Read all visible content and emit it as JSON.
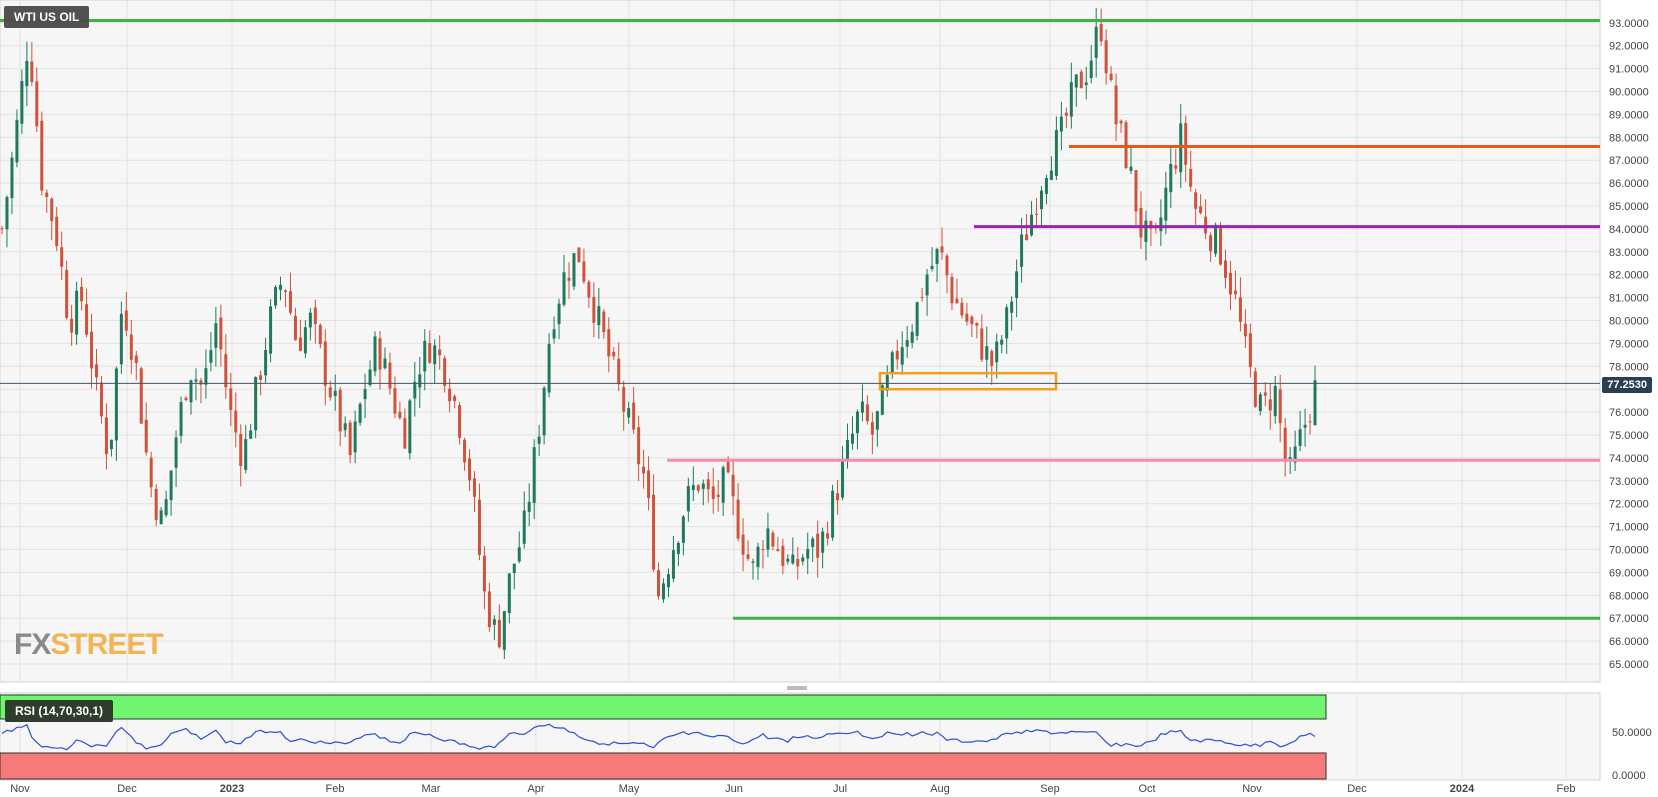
{
  "header": {
    "instrument": "WTI US OIL"
  },
  "price_tag": "77.2530",
  "watermark": {
    "part1": "FX",
    "part2": "STREET"
  },
  "rsi": {
    "label": "RSI (14,70,30,1)",
    "levels": [
      "50.0000",
      "0.0000"
    ]
  },
  "colors": {
    "bull": "#1f7a5c",
    "bear": "#d0523b",
    "green_line": "#43b046",
    "orange_line": "#e8581a",
    "purple_line": "#9b24ac",
    "pink_line": "#f48caf",
    "box": "#f0a020",
    "rsi_line": "#2a4fd6",
    "rsi_overbought": "#6ff56f",
    "rsi_oversold": "#f77a7a"
  },
  "chart_data": {
    "type": "candlestick",
    "title": "WTI US OIL",
    "y_range": [
      64.5,
      93.9
    ],
    "y_ticks": [
      "65.0000",
      "66.0000",
      "67.0000",
      "68.0000",
      "69.0000",
      "70.0000",
      "71.0000",
      "72.0000",
      "73.0000",
      "74.0000",
      "75.0000",
      "76.0000",
      "77.0000",
      "78.0000",
      "79.0000",
      "80.0000",
      "81.0000",
      "82.0000",
      "83.0000",
      "84.0000",
      "85.0000",
      "86.0000",
      "87.0000",
      "88.0000",
      "89.0000",
      "90.0000",
      "91.0000",
      "92.0000",
      "93.0000"
    ],
    "x_ticks": [
      "Nov",
      "Dec",
      "2023",
      "Feb",
      "Mar",
      "Apr",
      "May",
      "Jun",
      "Jul",
      "Aug",
      "Sep",
      "Oct",
      "Nov",
      "Dec",
      "2024",
      "Feb"
    ],
    "last_price": 77.253,
    "horizontal_levels": [
      {
        "price": 93.1,
        "color": "green"
      },
      {
        "price": 87.6,
        "color": "orange"
      },
      {
        "price": 84.1,
        "color": "purple"
      },
      {
        "price": 73.9,
        "color": "pink"
      },
      {
        "price": 67.0,
        "color": "green"
      }
    ],
    "box_zone": {
      "low": 77.1,
      "high": 77.5,
      "from": "Jul",
      "to": "Sep"
    },
    "price_path": [
      [
        "Nov",
        84
      ],
      [
        "Nov",
        88
      ],
      [
        "Nov",
        92.5
      ],
      [
        "Nov",
        86
      ],
      [
        "Nov",
        84
      ],
      [
        "Nov",
        80
      ],
      [
        "Nov",
        81
      ],
      [
        "Nov",
        77
      ],
      [
        "Dec",
        74
      ],
      [
        "Dec",
        81
      ],
      [
        "Dec",
        78
      ],
      [
        "Dec",
        73
      ],
      [
        "Dec",
        71
      ],
      [
        "Dec",
        75
      ],
      [
        "Dec",
        78
      ],
      [
        "Dec",
        77
      ],
      [
        "Dec",
        80
      ],
      [
        "2023",
        76
      ],
      [
        "2023",
        74
      ],
      [
        "2023",
        77
      ],
      [
        "2023",
        80
      ],
      [
        "2023",
        82
      ],
      [
        "2023",
        79
      ],
      [
        "Feb",
        80
      ],
      [
        "Feb",
        78
      ],
      [
        "Feb",
        76
      ],
      [
        "Feb",
        74
      ],
      [
        "Feb",
        77
      ],
      [
        "Feb",
        79
      ],
      [
        "Feb",
        77
      ],
      [
        "Mar",
        75
      ],
      [
        "Mar",
        78
      ],
      [
        "Mar",
        79
      ],
      [
        "Mar",
        78
      ],
      [
        "Mar",
        76
      ],
      [
        "Mar",
        73
      ],
      [
        "Mar",
        68
      ],
      [
        "Mar",
        66
      ],
      [
        "Mar",
        69
      ],
      [
        "Apr",
        71
      ],
      [
        "Apr",
        75
      ],
      [
        "Apr",
        80
      ],
      [
        "Apr",
        82
      ],
      [
        "Apr",
        83
      ],
      [
        "Apr",
        81
      ],
      [
        "Apr",
        79
      ],
      [
        "Apr",
        77
      ],
      [
        "May",
        75
      ],
      [
        "May",
        73
      ],
      [
        "May",
        68
      ],
      [
        "May",
        70
      ],
      [
        "May",
        72
      ],
      [
        "May",
        73
      ],
      [
        "Jun",
        72
      ],
      [
        "Jun",
        73
      ],
      [
        "Jun",
        71
      ],
      [
        "Jun",
        69
      ],
      [
        "Jun",
        71
      ],
      [
        "Jun",
        70
      ],
      [
        "Jun",
        69
      ],
      [
        "Jun",
        70
      ],
      [
        "Jul",
        70
      ],
      [
        "Jul",
        72
      ],
      [
        "Jul",
        74
      ],
      [
        "Jul",
        76
      ],
      [
        "Jul",
        75
      ],
      [
        "Jul",
        77
      ],
      [
        "Jul",
        79
      ],
      [
        "Aug",
        80
      ],
      [
        "Aug",
        82
      ],
      [
        "Aug",
        83
      ],
      [
        "Aug",
        81
      ],
      [
        "Aug",
        80
      ],
      [
        "Aug",
        79
      ],
      [
        "Aug",
        78
      ],
      [
        "Aug",
        80
      ],
      [
        "Sep",
        83
      ],
      [
        "Sep",
        85
      ],
      [
        "Sep",
        87
      ],
      [
        "Sep",
        88
      ],
      [
        "Sep",
        90
      ],
      [
        "Sep",
        91
      ],
      [
        "Sep",
        93
      ],
      [
        "Oct",
        89
      ],
      [
        "Oct",
        87
      ],
      [
        "Oct",
        84
      ],
      [
        "Oct",
        83
      ],
      [
        "Oct",
        86
      ],
      [
        "Oct",
        88
      ],
      [
        "Oct",
        85
      ],
      [
        "Oct",
        84
      ],
      [
        "Oct",
        83
      ],
      [
        "Nov",
        81
      ],
      [
        "Nov",
        78
      ],
      [
        "Nov",
        76
      ],
      [
        "Nov",
        77
      ],
      [
        "Nov",
        73
      ],
      [
        "Nov",
        75
      ],
      [
        "Nov",
        77
      ]
    ]
  }
}
